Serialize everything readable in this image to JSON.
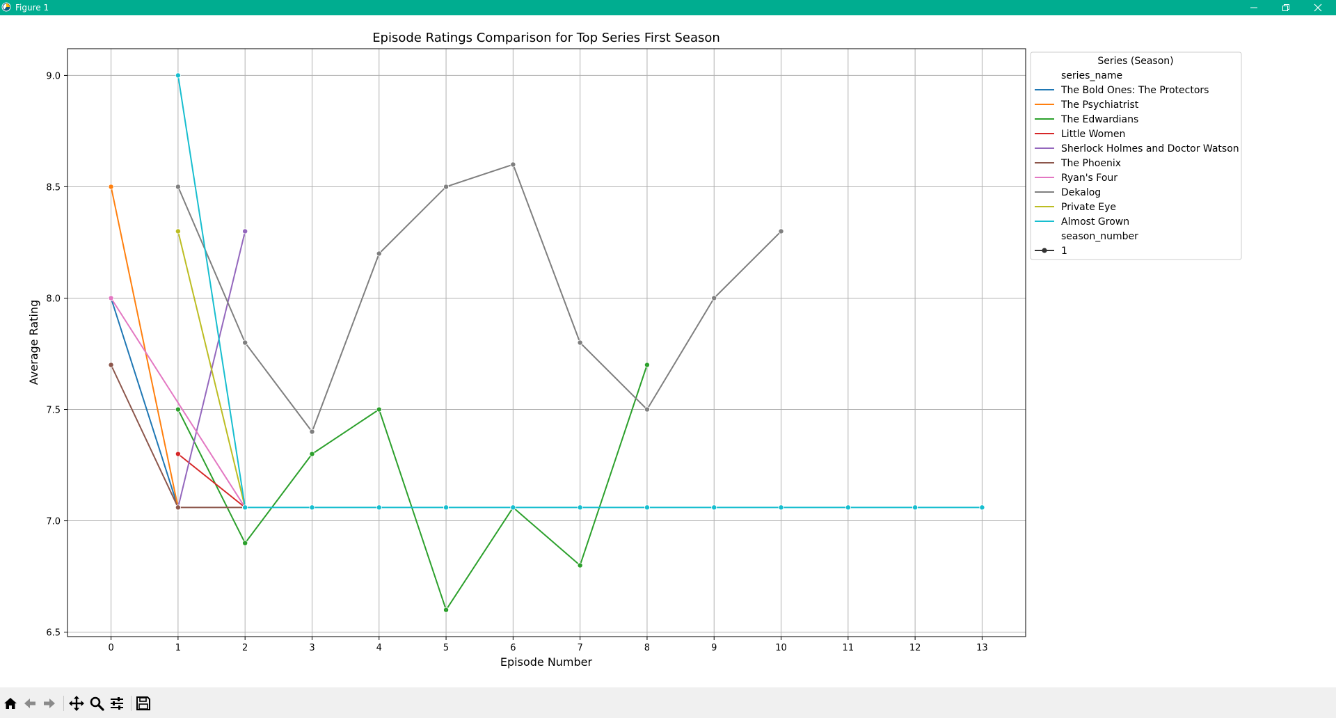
{
  "window": {
    "title": "Figure 1",
    "titlebar_color": "#00ad90",
    "controls": {
      "minimize": "minimize-icon",
      "maximize": "restore-icon",
      "close": "close-icon"
    }
  },
  "toolbar": {
    "buttons": [
      {
        "name": "home-button",
        "icon": "home-icon"
      },
      {
        "name": "back-button",
        "icon": "arrow-left-icon"
      },
      {
        "name": "forward-button",
        "icon": "arrow-right-icon"
      },
      {
        "name": "pan-button",
        "icon": "move-icon"
      },
      {
        "name": "zoom-button",
        "icon": "magnifier-icon"
      },
      {
        "name": "configure-button",
        "icon": "sliders-icon"
      },
      {
        "name": "save-button",
        "icon": "floppy-disk-icon"
      }
    ]
  },
  "chart_data": {
    "type": "line",
    "title": "Episode Ratings Comparison for Top Series First Season",
    "xlabel": "Episode Number",
    "ylabel": "Average Rating",
    "xlim": [
      -0.65,
      13.65
    ],
    "ylim": [
      6.48,
      9.12
    ],
    "xticks": [
      0,
      1,
      2,
      3,
      4,
      5,
      6,
      7,
      8,
      9,
      10,
      11,
      12,
      13
    ],
    "xtick_labels": [
      "0",
      "1",
      "2",
      "3",
      "4",
      "5",
      "6",
      "7",
      "8",
      "9",
      "10",
      "11",
      "12",
      "13"
    ],
    "yticks": [
      6.5,
      7.0,
      7.5,
      8.0,
      8.5,
      9.0
    ],
    "ytick_labels": [
      "6.5",
      "7.0",
      "7.5",
      "8.0",
      "8.5",
      "9.0"
    ],
    "grid": true,
    "legend": {
      "placement": "outside-right-top",
      "title": "Series (Season)",
      "hue_header": "series_name",
      "style_header": "season_number",
      "style_entries": [
        {
          "label": "1",
          "color": "#333333"
        }
      ]
    },
    "series": [
      {
        "name": "The Bold Ones: The Protectors",
        "color": "#1f77b4",
        "x": [
          0,
          1
        ],
        "y": [
          8.0,
          7.06
        ]
      },
      {
        "name": "The Psychiatrist",
        "color": "#ff7f0e",
        "x": [
          0,
          1
        ],
        "y": [
          8.5,
          7.06
        ]
      },
      {
        "name": "The Edwardians",
        "color": "#2ca02c",
        "x": [
          1,
          2,
          3,
          4,
          5,
          6,
          7,
          8
        ],
        "y": [
          7.5,
          6.9,
          7.3,
          7.5,
          6.6,
          7.06,
          6.8,
          7.7
        ]
      },
      {
        "name": "Little Women",
        "color": "#d62728",
        "x": [
          1,
          2
        ],
        "y": [
          7.3,
          7.06
        ]
      },
      {
        "name": "Sherlock Holmes and Doctor Watson",
        "color": "#9467bd",
        "x": [
          1,
          2
        ],
        "y": [
          7.06,
          8.3
        ]
      },
      {
        "name": "The Phoenix",
        "color": "#8c564b",
        "x": [
          0,
          1,
          2
        ],
        "y": [
          7.7,
          7.06,
          7.06
        ]
      },
      {
        "name": "Ryan's Four",
        "color": "#e377c2",
        "x": [
          0,
          2
        ],
        "y": [
          8.0,
          7.06
        ]
      },
      {
        "name": "Dekalog",
        "color": "#7f7f7f",
        "x": [
          1,
          2,
          3,
          4,
          5,
          6,
          7,
          8,
          9,
          10
        ],
        "y": [
          8.5,
          7.8,
          7.4,
          8.2,
          8.5,
          8.6,
          7.8,
          7.5,
          8.0,
          8.3
        ]
      },
      {
        "name": "Private Eye",
        "color": "#bcbd22",
        "x": [
          1,
          2
        ],
        "y": [
          8.3,
          7.06
        ]
      },
      {
        "name": "Almost Grown",
        "color": "#17becf",
        "x": [
          1,
          2,
          3,
          4,
          5,
          6,
          7,
          8,
          9,
          10,
          11,
          12,
          13
        ],
        "y": [
          9.0,
          7.06,
          7.06,
          7.06,
          7.06,
          7.06,
          7.06,
          7.06,
          7.06,
          7.06,
          7.06,
          7.06,
          7.06
        ]
      }
    ]
  }
}
